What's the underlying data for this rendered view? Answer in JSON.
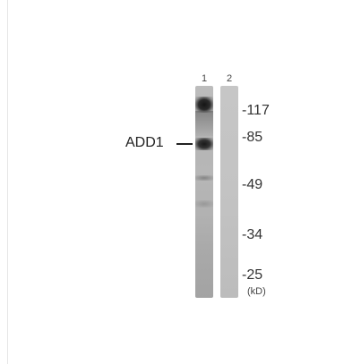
{
  "lanes": [
    {
      "number": "1"
    },
    {
      "number": "2"
    }
  ],
  "protein_label": "ADD1",
  "markers": [
    {
      "label": "-117",
      "kd": 117
    },
    {
      "label": "-85",
      "kd": 85
    },
    {
      "label": "-49",
      "kd": 49
    },
    {
      "label": "-34",
      "kd": 34
    },
    {
      "label": "-25",
      "kd": 25
    }
  ],
  "unit_label": "(kD)"
}
